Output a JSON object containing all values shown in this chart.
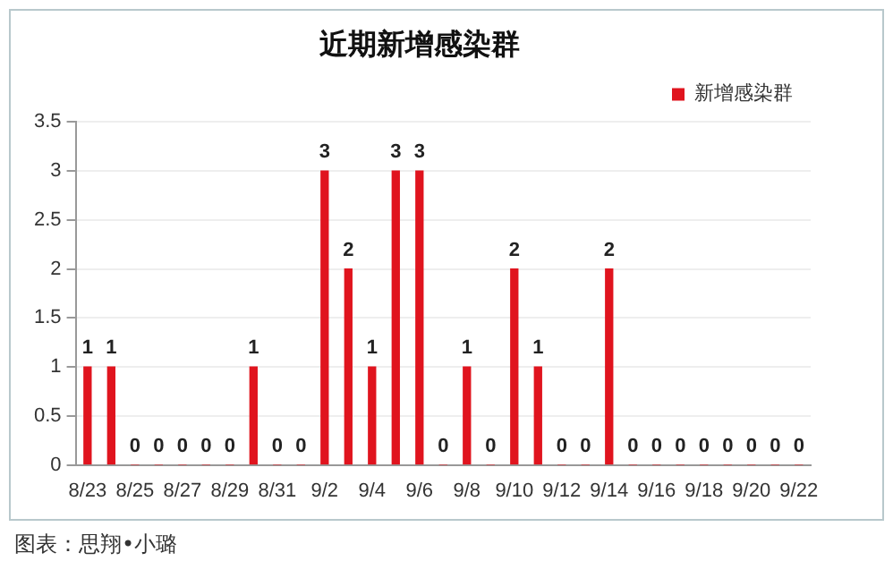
{
  "chart_data": {
    "type": "bar",
    "title": "近期新增感染群",
    "categories": [
      "8/23",
      null,
      "8/25",
      null,
      "8/27",
      null,
      "8/29",
      null,
      "8/31",
      null,
      "9/2",
      null,
      "9/4",
      null,
      "9/6",
      null,
      "9/8",
      null,
      "9/10",
      null,
      "9/12",
      null,
      "9/14",
      null,
      "9/16",
      null,
      "9/18",
      null,
      "9/20",
      null,
      "9/22"
    ],
    "series": [
      {
        "name": "新增感染群",
        "color": "#e0141e",
        "values": [
          1,
          1,
          0,
          0,
          0,
          0,
          0,
          1,
          0,
          0,
          3,
          2,
          1,
          3,
          3,
          0,
          1,
          0,
          2,
          1,
          0,
          0,
          2,
          0,
          0,
          0,
          0,
          0,
          0,
          0,
          0
        ]
      }
    ],
    "ylim": [
      0,
      3.5
    ],
    "yticks": [
      0,
      0.5,
      1,
      1.5,
      2,
      2.5,
      3,
      3.5
    ],
    "grid": "y",
    "legend": "top right",
    "data_labels": true,
    "annotations": [
      "图表：思翔•小璐"
    ]
  }
}
